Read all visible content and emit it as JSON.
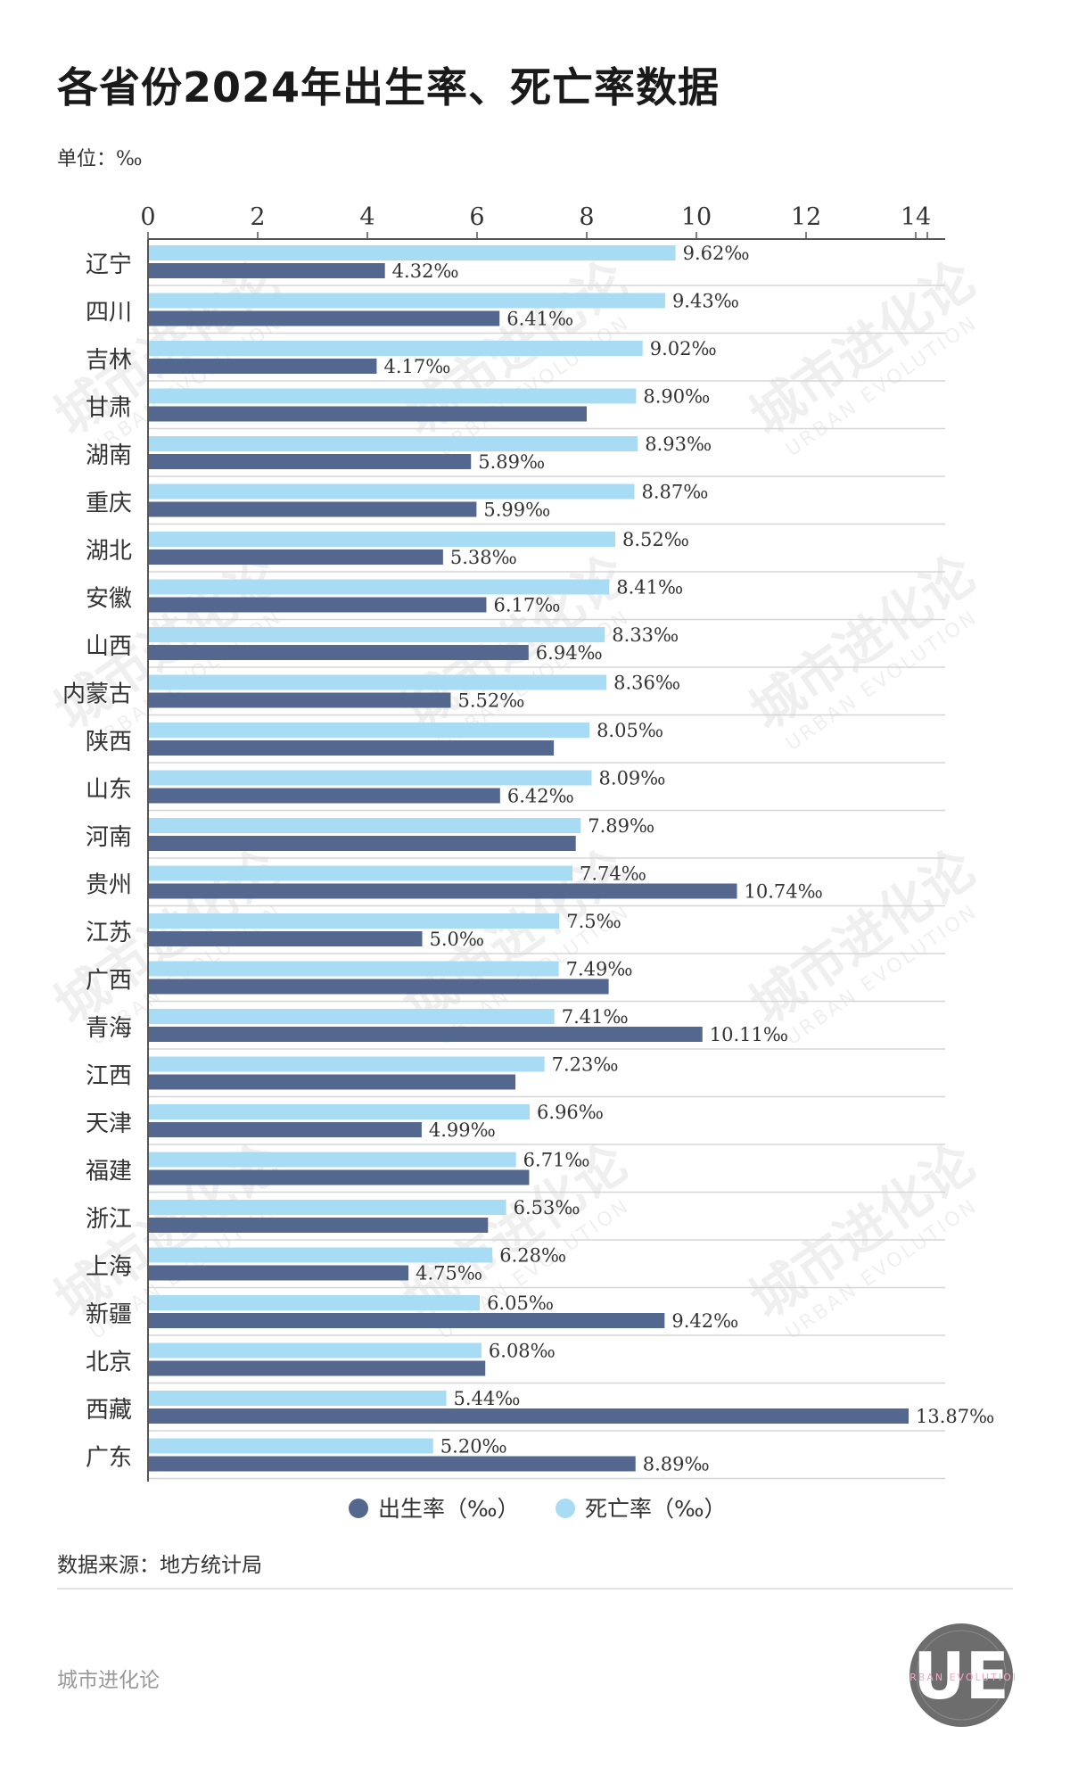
{
  "title": "各省份2024年出生率、死亡率数据",
  "unit_label": "单位：‰",
  "source": "数据来源：地方统计局",
  "footer_brand": "城市进化论",
  "logo": {
    "mark": "UE",
    "ring_text": "URBAN EVOLUTION"
  },
  "watermark": {
    "cn": "城市进化论",
    "en": "URBAN EVOLUTION"
  },
  "colors": {
    "birth": "#54678f",
    "death": "#a8dcf5",
    "axis": "#555555",
    "grid": "#d6d6d6"
  },
  "chart_data": {
    "type": "bar",
    "orientation": "horizontal",
    "xlim": [
      0,
      14
    ],
    "xticks": [
      0,
      2,
      4,
      6,
      8,
      10,
      12,
      14
    ],
    "value_suffix": "‰",
    "legend_position": "bottom",
    "categories": [
      "辽宁",
      "四川",
      "吉林",
      "甘肃",
      "湖南",
      "重庆",
      "湖北",
      "安徽",
      "山西",
      "内蒙古",
      "陕西",
      "山东",
      "河南",
      "贵州",
      "江苏",
      "广西",
      "青海",
      "江西",
      "天津",
      "福建",
      "浙江",
      "上海",
      "新疆",
      "北京",
      "西藏",
      "广东"
    ],
    "series": [
      {
        "name": "死亡率（‰）",
        "values": [
          9.62,
          9.43,
          9.02,
          8.9,
          8.93,
          8.87,
          8.52,
          8.41,
          8.33,
          8.36,
          8.05,
          8.09,
          7.89,
          7.74,
          7.5,
          7.49,
          7.41,
          7.23,
          6.96,
          6.71,
          6.53,
          6.28,
          6.05,
          6.08,
          5.44,
          5.2
        ],
        "labels": [
          "9.62‰",
          "9.43‰",
          "9.02‰",
          "8.90‰",
          "8.93‰",
          "8.87‰",
          "8.52‰",
          "8.41‰",
          "8.33‰",
          "8.36‰",
          "8.05‰",
          "8.09‰",
          "7.89‰",
          "7.74‰",
          "7.5‰",
          "7.49‰",
          "7.41‰",
          "7.23‰",
          "6.96‰",
          "6.71‰",
          "6.53‰",
          "6.28‰",
          "6.05‰",
          "6.08‰",
          "5.44‰",
          "5.20‰"
        ]
      },
      {
        "name": "出生率（‰）",
        "values": [
          4.32,
          6.41,
          4.17,
          8.0,
          5.89,
          5.99,
          5.38,
          6.17,
          6.94,
          5.52,
          7.4,
          6.42,
          7.8,
          10.74,
          5.0,
          8.4,
          10.11,
          6.7,
          4.99,
          6.95,
          6.2,
          4.75,
          9.42,
          6.15,
          13.87,
          8.89
        ],
        "labels": [
          "4.32‰",
          "6.41‰",
          "4.17‰",
          "",
          "5.89‰",
          "5.99‰",
          "5.38‰",
          "6.17‰",
          "6.94‰",
          "5.52‰",
          "",
          "6.42‰",
          "",
          "10.74‰",
          "5.0‰",
          "",
          "10.11‰",
          "",
          "4.99‰",
          "",
          "",
          "4.75‰",
          "9.42‰",
          "",
          "13.87‰",
          "8.89‰"
        ]
      }
    ]
  }
}
